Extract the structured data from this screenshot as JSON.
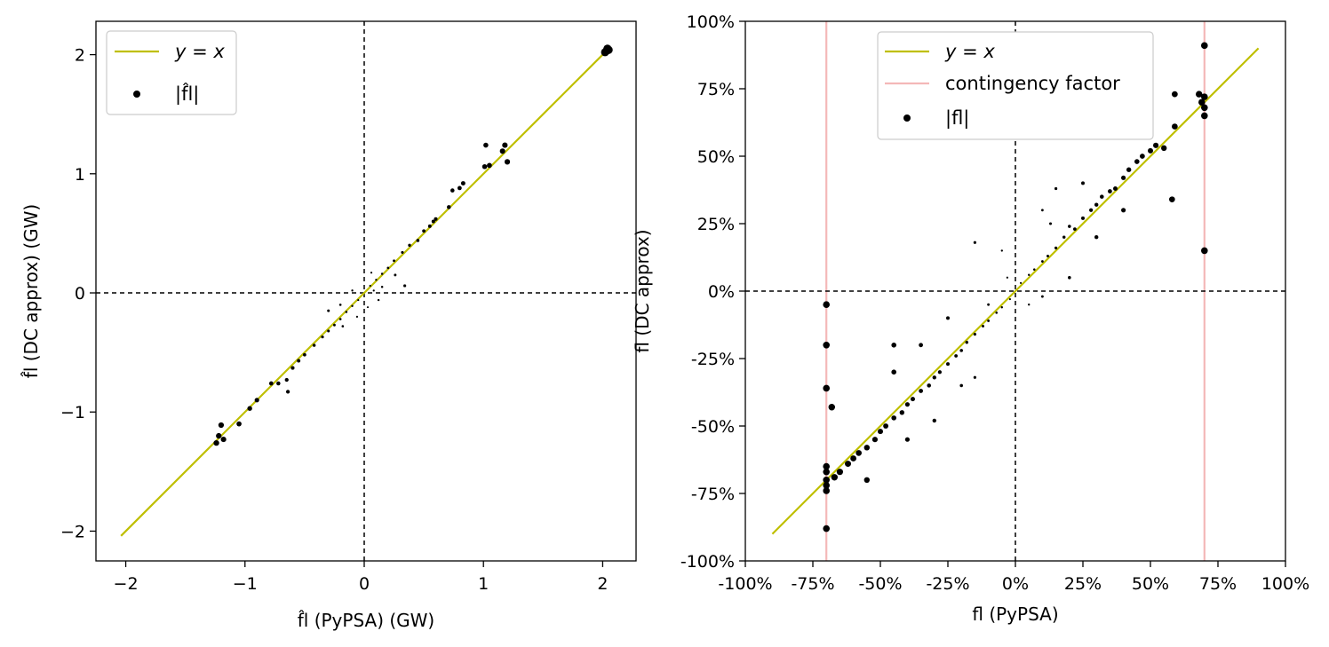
{
  "chart_data": [
    {
      "type": "scatter",
      "xlabel": "f̂l (PyPSA) (GW)",
      "ylabel": "f̂l (DC approx) (GW)",
      "xlim": [
        -2.25,
        2.28
      ],
      "ylim": [
        -2.25,
        2.28
      ],
      "xticks": [
        -2,
        -1,
        0,
        1,
        2
      ],
      "yticks": [
        -2,
        -1,
        0,
        1,
        2
      ],
      "xtick_labels": [
        "−2",
        "−1",
        "0",
        "1",
        "2"
      ],
      "ytick_labels": [
        "−2",
        "−1",
        "0",
        "1",
        "2"
      ],
      "reference_lines": {
        "x": 0,
        "y": 0,
        "style": "dashed",
        "color": "#000000"
      },
      "identity_line": {
        "x": [
          -2.04,
          2.04
        ],
        "color": "#bfbf00"
      },
      "legend": {
        "position": "top-left",
        "entries": [
          "y = x",
          "|f̂l|"
        ]
      },
      "series": [
        {
          "name": "|f̂l|",
          "marker": "circle",
          "color": "#000000",
          "points": [
            [
              2.03,
              2.03
            ],
            [
              2.05,
              2.04
            ],
            [
              2.02,
              2.02
            ],
            [
              2.04,
              2.05
            ],
            [
              1.18,
              1.24
            ],
            [
              1.02,
              1.24
            ],
            [
              1.16,
              1.19
            ],
            [
              1.2,
              1.1
            ],
            [
              1.01,
              1.06
            ],
            [
              1.05,
              1.07
            ],
            [
              0.83,
              0.92
            ],
            [
              0.74,
              0.86
            ],
            [
              0.8,
              0.88
            ],
            [
              0.71,
              0.72
            ],
            [
              0.6,
              0.62
            ],
            [
              0.58,
              0.6
            ],
            [
              0.55,
              0.56
            ],
            [
              0.5,
              0.52
            ],
            [
              0.45,
              0.44
            ],
            [
              0.38,
              0.4
            ],
            [
              0.32,
              0.34
            ],
            [
              0.25,
              0.27
            ],
            [
              0.2,
              0.21
            ],
            [
              0.15,
              0.16
            ],
            [
              0.1,
              0.11
            ],
            [
              0.05,
              0.06
            ],
            [
              -0.05,
              -0.06
            ],
            [
              -0.1,
              -0.11
            ],
            [
              -0.15,
              -0.16
            ],
            [
              -0.2,
              -0.22
            ],
            [
              -0.25,
              -0.27
            ],
            [
              -0.3,
              -0.32
            ],
            [
              -0.35,
              -0.37
            ],
            [
              -0.42,
              -0.44
            ],
            [
              -0.5,
              -0.52
            ],
            [
              -0.55,
              -0.57
            ],
            [
              -0.6,
              -0.63
            ],
            [
              -0.64,
              -0.83
            ],
            [
              -0.65,
              -0.73
            ],
            [
              -0.72,
              -0.76
            ],
            [
              -0.78,
              -0.76
            ],
            [
              -0.9,
              -0.9
            ],
            [
              -0.96,
              -0.97
            ],
            [
              -1.05,
              -1.1
            ],
            [
              -1.2,
              -1.11
            ],
            [
              -1.22,
              -1.2
            ],
            [
              -1.18,
              -1.23
            ],
            [
              -1.24,
              -1.26
            ],
            [
              0.06,
              0.17
            ],
            [
              0.26,
              0.15
            ],
            [
              0.15,
              0.05
            ],
            [
              -0.1,
              0.02
            ],
            [
              0.12,
              -0.06
            ],
            [
              -0.2,
              -0.1
            ],
            [
              0.34,
              0.06
            ],
            [
              -0.06,
              -0.2
            ],
            [
              0.03,
              -0.12
            ],
            [
              -0.3,
              -0.15
            ],
            [
              -0.18,
              -0.28
            ],
            [
              0.08,
              0.02
            ]
          ]
        }
      ]
    },
    {
      "type": "scatter",
      "xlabel": "fl (PyPSA)",
      "ylabel": "fl (DC approx)",
      "xlim": [
        -100,
        100
      ],
      "ylim": [
        -100,
        100
      ],
      "xticks": [
        -100,
        -75,
        -50,
        -25,
        0,
        25,
        50,
        75,
        100
      ],
      "yticks": [
        -100,
        -75,
        -50,
        -25,
        0,
        25,
        50,
        75,
        100
      ],
      "xtick_labels": [
        "-100%",
        "-75%",
        "-50%",
        "-25%",
        "0%",
        "25%",
        "50%",
        "75%",
        "100%"
      ],
      "ytick_labels": [
        "-100%",
        "-75%",
        "-50%",
        "-25%",
        "0%",
        "25%",
        "50%",
        "75%",
        "100%"
      ],
      "reference_lines": {
        "x": 0,
        "y": 0,
        "style": "dashed",
        "color": "#000000"
      },
      "identity_line": {
        "x": [
          -90,
          90
        ],
        "color": "#bfbf00"
      },
      "contingency_lines": {
        "x": [
          -70,
          70
        ],
        "color": "#f4b8b8"
      },
      "legend": {
        "position": "top-center",
        "entries": [
          "y = x",
          "contingency factor",
          "|fl|"
        ]
      },
      "series": [
        {
          "name": "|fl|",
          "marker": "circle",
          "color": "#000000",
          "points": [
            [
              70,
              91
            ],
            [
              70,
              72
            ],
            [
              69,
              70
            ],
            [
              70,
              68
            ],
            [
              70,
              65
            ],
            [
              68,
              73
            ],
            [
              59,
              73
            ],
            [
              59,
              61
            ],
            [
              70,
              15
            ],
            [
              58,
              34
            ],
            [
              55,
              53
            ],
            [
              52,
              54
            ],
            [
              50,
              52
            ],
            [
              47,
              50
            ],
            [
              45,
              48
            ],
            [
              42,
              45
            ],
            [
              40,
              42
            ],
            [
              37,
              38
            ],
            [
              35,
              37
            ],
            [
              32,
              35
            ],
            [
              30,
              32
            ],
            [
              28,
              30
            ],
            [
              25,
              27
            ],
            [
              22,
              23
            ],
            [
              20,
              24
            ],
            [
              18,
              20
            ],
            [
              15,
              16
            ],
            [
              12,
              13
            ],
            [
              10,
              11
            ],
            [
              7,
              8
            ],
            [
              5,
              6
            ],
            [
              2,
              3
            ],
            [
              -2,
              -3
            ],
            [
              -5,
              -6
            ],
            [
              -7,
              -8
            ],
            [
              -10,
              -11
            ],
            [
              -12,
              -13
            ],
            [
              -15,
              -16
            ],
            [
              -18,
              -19
            ],
            [
              -20,
              -22
            ],
            [
              -22,
              -24
            ],
            [
              -25,
              -27
            ],
            [
              -28,
              -30
            ],
            [
              -30,
              -32
            ],
            [
              -32,
              -35
            ],
            [
              -35,
              -37
            ],
            [
              -38,
              -40
            ],
            [
              -40,
              -42
            ],
            [
              -42,
              -45
            ],
            [
              -45,
              -47
            ],
            [
              -48,
              -50
            ],
            [
              -50,
              -52
            ],
            [
              -52,
              -55
            ],
            [
              -55,
              -58
            ],
            [
              -58,
              -60
            ],
            [
              -60,
              -62
            ],
            [
              -62,
              -64
            ],
            [
              -65,
              -67
            ],
            [
              -67,
              -69
            ],
            [
              -70,
              -5
            ],
            [
              -70,
              -20
            ],
            [
              -70,
              -36
            ],
            [
              -68,
              -43
            ],
            [
              -70,
              -65
            ],
            [
              -70,
              -67
            ],
            [
              -70,
              -70
            ],
            [
              -70,
              -72
            ],
            [
              -70,
              -74
            ],
            [
              -70,
              -88
            ],
            [
              15,
              38
            ],
            [
              10,
              30
            ],
            [
              -5,
              15
            ],
            [
              -15,
              18
            ],
            [
              20,
              5
            ],
            [
              25,
              40
            ],
            [
              13,
              25
            ],
            [
              -20,
              -35
            ],
            [
              -35,
              -20
            ],
            [
              -15,
              -32
            ],
            [
              -45,
              -30
            ],
            [
              -30,
              -48
            ],
            [
              -55,
              -70
            ],
            [
              -45,
              -20
            ],
            [
              5,
              -5
            ],
            [
              -3,
              5
            ],
            [
              10,
              -2
            ],
            [
              -10,
              -5
            ],
            [
              30,
              20
            ],
            [
              -25,
              -10
            ],
            [
              40,
              30
            ],
            [
              -40,
              -55
            ]
          ]
        }
      ]
    }
  ]
}
